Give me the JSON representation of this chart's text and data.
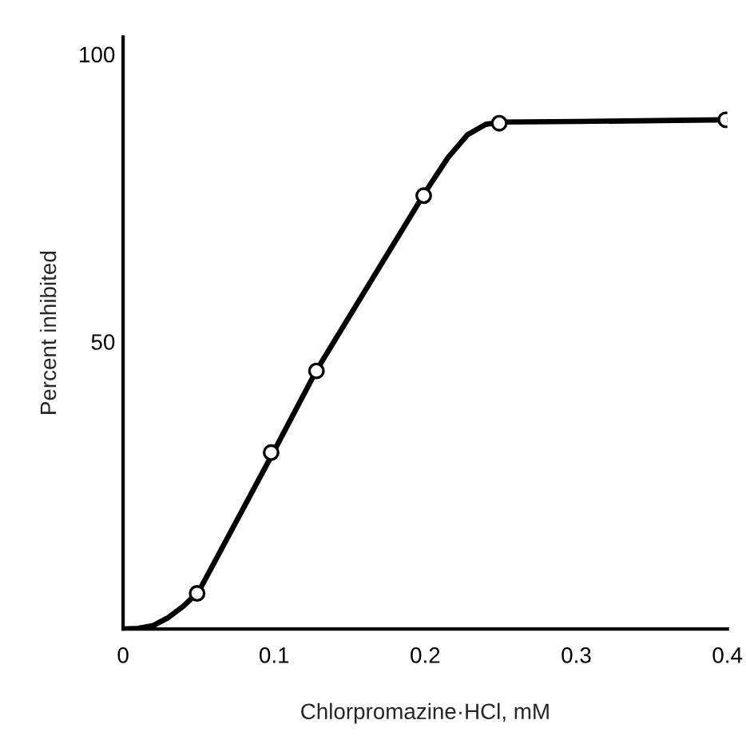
{
  "chart_data": {
    "type": "scatter",
    "xlabel": "Chlorpromazine·HCl, mM",
    "ylabel": "Percent inhibited",
    "xlim": [
      0,
      0.4
    ],
    "ylim": [
      0,
      103
    ],
    "xticks": [
      0,
      0.1,
      0.2,
      0.3,
      0.4
    ],
    "yticks": [
      50,
      100
    ],
    "grid": false,
    "legend": false,
    "series": [
      {
        "type": "line",
        "color": "#000000",
        "marker": "none",
        "line_style": "solid",
        "x": [
          0,
          0.01,
          0.02,
          0.03,
          0.04,
          0.05,
          0.1,
          0.128,
          0.2,
          0.215,
          0.228,
          0.24,
          0.25,
          0.3,
          0.4
        ],
        "values": [
          0,
          0.1,
          0.6,
          2,
          4,
          6.5,
          31,
          45,
          76,
          82,
          86,
          87.8,
          88.2,
          88.3,
          88.6
        ]
      },
      {
        "color": "#000000",
        "marker": "circle",
        "x": [
          0.049,
          0.098,
          0.128,
          0.199,
          0.249,
          0.399
        ],
        "values": [
          6.2,
          30.7,
          44.9,
          75.4,
          88,
          88.6
        ]
      }
    ]
  }
}
